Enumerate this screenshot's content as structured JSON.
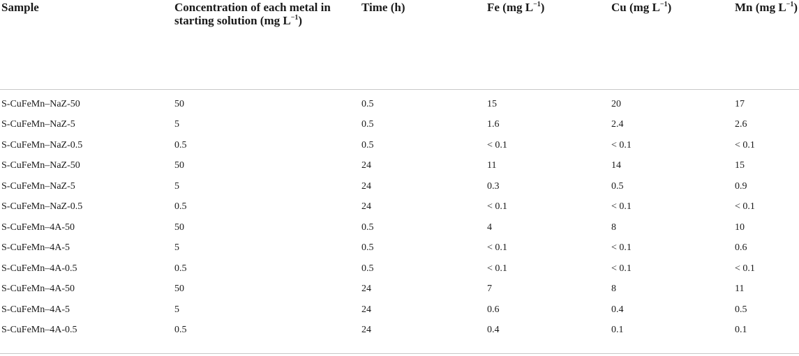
{
  "table": {
    "headers": [
      {
        "text": "Sample",
        "sup": "",
        "after": ""
      },
      {
        "text": "Concentration of each metal in starting solution (mg L",
        "sup": "−1",
        "after": ")"
      },
      {
        "text": "Time (h)",
        "sup": "",
        "after": ""
      },
      {
        "text": "Fe (mg L",
        "sup": "−1",
        "after": ")"
      },
      {
        "text": "Cu (mg L",
        "sup": "−1",
        "after": ")"
      },
      {
        "text": "Mn (mg L",
        "sup": "−1",
        "after": ")"
      }
    ],
    "rows": [
      [
        "S-CuFeMn–NaZ-50",
        "50",
        "0.5",
        "15",
        "20",
        "17"
      ],
      [
        "S-CuFeMn–NaZ-5",
        "5",
        "0.5",
        "1.6",
        "2.4",
        "2.6"
      ],
      [
        "S-CuFeMn–NaZ-0.5",
        "0.5",
        "0.5",
        "< 0.1",
        "< 0.1",
        "< 0.1"
      ],
      [
        "S-CuFeMn–NaZ-50",
        "50",
        "24",
        "11",
        "14",
        "15"
      ],
      [
        "S-CuFeMn–NaZ-5",
        "5",
        "24",
        "0.3",
        "0.5",
        "0.9"
      ],
      [
        "S-CuFeMn–NaZ-0.5",
        "0.5",
        "24",
        "< 0.1",
        "< 0.1",
        "< 0.1"
      ],
      [
        "S-CuFeMn–4A-50",
        "50",
        "0.5",
        "4",
        "8",
        "10"
      ],
      [
        "S-CuFeMn–4A-5",
        "5",
        "0.5",
        "< 0.1",
        "< 0.1",
        "0.6"
      ],
      [
        "S-CuFeMn–4A-0.5",
        "0.5",
        "0.5",
        "< 0.1",
        "< 0.1",
        "< 0.1"
      ],
      [
        "S-CuFeMn–4A-50",
        "50",
        "24",
        "7",
        "8",
        "11"
      ],
      [
        "S-CuFeMn–4A-5",
        "5",
        "24",
        "0.6",
        "0.4",
        "0.5"
      ],
      [
        "S-CuFeMn–4A-0.5",
        "0.5",
        "24",
        "0.4",
        "0.1",
        "0.1"
      ]
    ]
  }
}
